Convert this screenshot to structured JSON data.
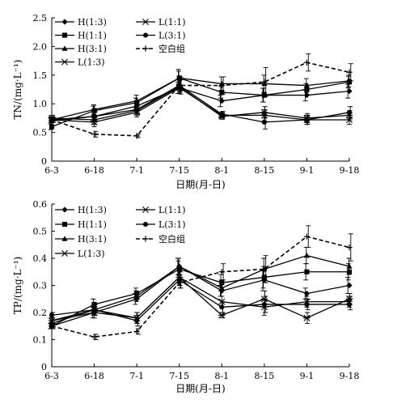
{
  "chart_data": [
    {
      "type": "line",
      "ylabel": "TN/(mg·L⁻¹)",
      "xlabel": "日期(月-日)",
      "categories": [
        "6-3",
        "6-18",
        "7-1",
        "7-15",
        "8-1",
        "8-15",
        "9-1",
        "9-18"
      ],
      "ylim": [
        0,
        2.5
      ],
      "yticks": [
        "0",
        "0.5",
        "1.0",
        "1.5",
        "2.0",
        "2.5"
      ],
      "grid": false,
      "legend_position": "top-left",
      "series": [
        {
          "name": "H(1:3)",
          "marker": "diamond",
          "dashed": false,
          "values": [
            0.7,
            0.78,
            0.96,
            1.28,
            1.05,
            1.15,
            1.15,
            1.22
          ],
          "errors": [
            0.05,
            0.08,
            0.08,
            0.1,
            0.1,
            0.12,
            0.1,
            0.12
          ]
        },
        {
          "name": "H(1:1)",
          "marker": "square",
          "dashed": false,
          "values": [
            0.6,
            0.88,
            1.02,
            1.45,
            1.2,
            1.15,
            1.25,
            1.38
          ],
          "errors": [
            0.05,
            0.08,
            0.08,
            0.15,
            0.1,
            0.12,
            0.1,
            0.1
          ]
        },
        {
          "name": "H(3:1)",
          "marker": "triangle",
          "dashed": false,
          "values": [
            0.72,
            0.9,
            1.05,
            1.45,
            1.35,
            1.35,
            1.32,
            1.4
          ],
          "errors": [
            0.05,
            0.08,
            0.1,
            0.12,
            0.12,
            0.15,
            0.12,
            0.1
          ]
        },
        {
          "name": "L(1:3)",
          "marker": "x",
          "dashed": false,
          "values": [
            0.72,
            0.68,
            0.85,
            1.28,
            0.8,
            0.8,
            0.72,
            0.72
          ],
          "errors": [
            0.05,
            0.08,
            0.08,
            0.1,
            0.05,
            0.1,
            0.08,
            0.08
          ]
        },
        {
          "name": "L(1:1)",
          "marker": "asterisk",
          "dashed": false,
          "values": [
            0.75,
            0.72,
            0.88,
            1.3,
            0.78,
            0.85,
            0.75,
            0.8
          ],
          "errors": [
            0.05,
            0.08,
            0.08,
            0.1,
            0.05,
            0.1,
            0.08,
            0.08
          ]
        },
        {
          "name": "L(3:1)",
          "marker": "circle",
          "dashed": false,
          "values": [
            0.72,
            0.78,
            0.9,
            1.32,
            0.82,
            0.68,
            0.72,
            0.85
          ],
          "errors": [
            0.05,
            0.08,
            0.08,
            0.1,
            0.05,
            0.12,
            0.08,
            0.1
          ]
        },
        {
          "name": "空白组",
          "marker": "plus",
          "dashed": true,
          "values": [
            0.72,
            0.47,
            0.44,
            1.32,
            1.32,
            1.38,
            1.72,
            1.55
          ],
          "errors": [
            0.05,
            0.05,
            0.03,
            0.15,
            0.15,
            0.25,
            0.15,
            0.15
          ]
        }
      ]
    },
    {
      "type": "line",
      "ylabel": "TP/(mg·L⁻¹)",
      "xlabel": "日期(月-日)",
      "categories": [
        "6-3",
        "6-18",
        "7-1",
        "7-15",
        "8-1",
        "8-15",
        "9-1",
        "9-18"
      ],
      "ylim": [
        0,
        0.6
      ],
      "yticks": [
        "0",
        "0.1",
        "0.2",
        "0.3",
        "0.4",
        "0.5",
        "0.6"
      ],
      "grid": false,
      "legend_position": "top-left",
      "series": [
        {
          "name": "H(1:3)",
          "marker": "diamond",
          "dashed": false,
          "values": [
            0.15,
            0.2,
            0.25,
            0.37,
            0.28,
            0.32,
            0.27,
            0.3
          ],
          "errors": [
            0.01,
            0.02,
            0.02,
            0.03,
            0.02,
            0.04,
            0.02,
            0.03
          ]
        },
        {
          "name": "H(1:1)",
          "marker": "square",
          "dashed": false,
          "values": [
            0.15,
            0.23,
            0.27,
            0.36,
            0.31,
            0.33,
            0.35,
            0.35
          ],
          "errors": [
            0.01,
            0.02,
            0.02,
            0.03,
            0.03,
            0.04,
            0.03,
            0.03
          ]
        },
        {
          "name": "H(3:1)",
          "marker": "triangle",
          "dashed": false,
          "values": [
            0.16,
            0.21,
            0.26,
            0.37,
            0.29,
            0.36,
            0.41,
            0.37
          ],
          "errors": [
            0.01,
            0.02,
            0.02,
            0.03,
            0.03,
            0.04,
            0.03,
            0.03
          ]
        },
        {
          "name": "L(1:3)",
          "marker": "x",
          "dashed": false,
          "values": [
            0.17,
            0.2,
            0.18,
            0.33,
            0.24,
            0.22,
            0.24,
            0.24
          ],
          "errors": [
            0.01,
            0.02,
            0.02,
            0.03,
            0.02,
            0.03,
            0.02,
            0.02
          ]
        },
        {
          "name": "L(1:1)",
          "marker": "asterisk",
          "dashed": false,
          "values": [
            0.17,
            0.21,
            0.18,
            0.33,
            0.19,
            0.25,
            0.18,
            0.25
          ],
          "errors": [
            0.01,
            0.02,
            0.02,
            0.03,
            0.01,
            0.03,
            0.02,
            0.02
          ]
        },
        {
          "name": "L(3:1)",
          "marker": "circle",
          "dashed": false,
          "values": [
            0.19,
            0.21,
            0.17,
            0.32,
            0.22,
            0.23,
            0.23,
            0.23
          ],
          "errors": [
            0.01,
            0.02,
            0.02,
            0.03,
            0.02,
            0.03,
            0.02,
            0.02
          ]
        },
        {
          "name": "空白组",
          "marker": "plus",
          "dashed": true,
          "values": [
            0.15,
            0.11,
            0.13,
            0.31,
            0.35,
            0.36,
            0.48,
            0.44
          ],
          "errors": [
            0.01,
            0.01,
            0.01,
            0.02,
            0.03,
            0.05,
            0.04,
            0.05
          ]
        }
      ]
    }
  ]
}
